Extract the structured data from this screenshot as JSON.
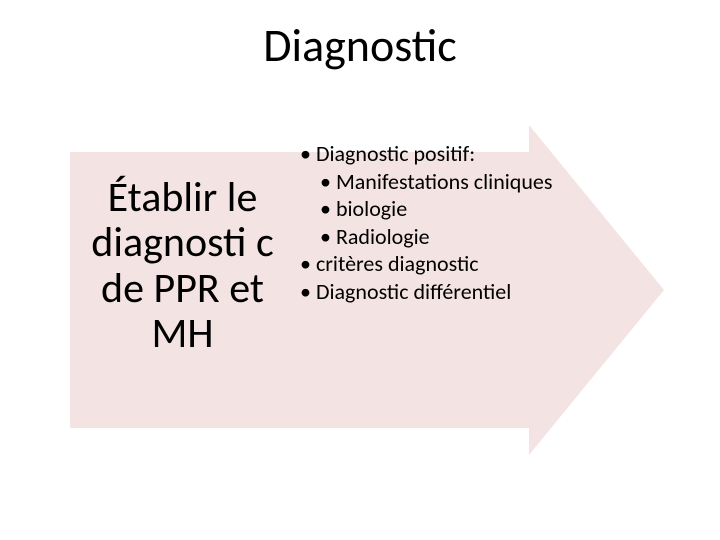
{
  "title": "Diagnostic",
  "arrow": {
    "bg_color": "#f3e3e2"
  },
  "left": {
    "text": "Établir le diagnosti c de PPR et MH",
    "fontsize": 42,
    "color": "#000000"
  },
  "right": {
    "fontsize": 22,
    "color": "#000000",
    "items": [
      {
        "level": 1,
        "text": "Diagnostic positif:"
      },
      {
        "level": 2,
        "text": "Manifestations cliniques"
      },
      {
        "level": 2,
        "text": "biologie"
      },
      {
        "level": 2,
        "text": "Radiologie"
      },
      {
        "level": 1,
        "text": "   critères diagnostic"
      },
      {
        "level": 1,
        "text": "Diagnostic différentiel"
      }
    ]
  }
}
